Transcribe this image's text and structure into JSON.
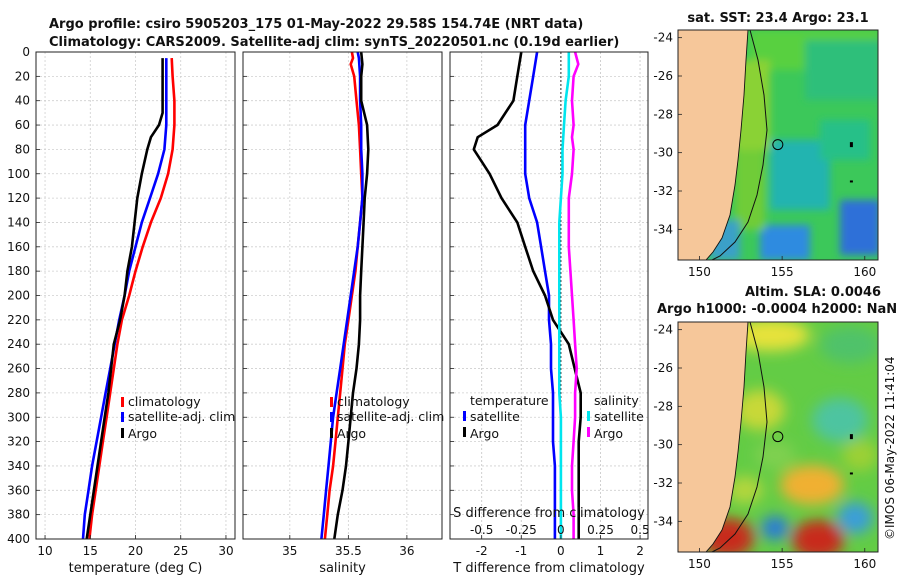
{
  "figure": {
    "title_line1": "Argo profile: csiro 5905203_175 01-May-2022 29.58S 154.74E (NRT data)",
    "title_line2": "Climatology: CARS2009. Satellite-adj clim: synTS_20220501.nc (0.19d earlier)",
    "copyright": "©IMOS 06-May-2022 11:41:04"
  },
  "colors": {
    "argo": "#000000",
    "climatology": "#ff0000",
    "satellite_adj": "#0000ff",
    "salinity_satellite": "#00e5ee",
    "salinity_argo": "#ff00ff",
    "land": "#f6c79a",
    "frame": "#222222"
  },
  "depth_axis": {
    "min": 0,
    "max": 400,
    "ticks": [
      "0",
      "20",
      "40",
      "60",
      "80",
      "100",
      "120",
      "140",
      "160",
      "180",
      "200",
      "220",
      "240",
      "260",
      "280",
      "300",
      "320",
      "340",
      "360",
      "380",
      "400"
    ]
  },
  "chart_data": [
    {
      "id": "temperature",
      "type": "line",
      "xlabel": "temperature (deg C)",
      "xlim": [
        9,
        31
      ],
      "ylim": [
        0,
        400
      ],
      "y_inverted": true,
      "grid": true,
      "xticks": [
        10,
        15,
        20,
        25,
        30
      ],
      "xtick_labels": [
        "10",
        "15",
        "20",
        "25",
        "30"
      ],
      "legend": {
        "placement": "lower-middle",
        "entries": [
          "climatology",
          "satellite-adj. clim",
          "Argo"
        ]
      },
      "series": [
        {
          "name": "climatology",
          "color": "#ff0000",
          "depth": [
            5,
            20,
            40,
            60,
            80,
            100,
            120,
            140,
            160,
            180,
            200,
            220,
            240,
            260,
            280,
            300,
            320,
            340,
            360,
            380,
            400
          ],
          "values": [
            24,
            24.1,
            24.3,
            24.3,
            24.1,
            23.6,
            22.8,
            21.7,
            20.8,
            20.0,
            19.3,
            18.5,
            18.0,
            17.6,
            17.2,
            16.8,
            16.4,
            16.0,
            15.6,
            15.2,
            14.9
          ]
        },
        {
          "name": "satellite-adj. clim",
          "color": "#0000ff",
          "depth": [
            5,
            20,
            40,
            60,
            80,
            100,
            120,
            140,
            160,
            180,
            200,
            220,
            240,
            260,
            280,
            300,
            320,
            340,
            360,
            380,
            400
          ],
          "values": [
            23.4,
            23.4,
            23.4,
            23.4,
            23.2,
            22.5,
            21.6,
            20.7,
            20.0,
            19.3,
            18.8,
            18.2,
            17.7,
            17.2,
            16.7,
            16.2,
            15.7,
            15.2,
            14.8,
            14.4,
            14.2
          ]
        },
        {
          "name": "Argo",
          "color": "#000000",
          "depth": [
            5,
            20,
            40,
            50,
            60,
            70,
            80,
            100,
            120,
            140,
            160,
            180,
            200,
            220,
            240,
            260,
            280,
            300,
            320,
            340,
            360,
            380,
            400
          ],
          "values": [
            23,
            23,
            23,
            23,
            22.6,
            21.7,
            21.3,
            20.7,
            20.2,
            19.9,
            19.6,
            19.1,
            18.8,
            18.3,
            17.6,
            17.3,
            17.0,
            16.6,
            16.2,
            15.8,
            15.4,
            15.0,
            14.6
          ]
        }
      ]
    },
    {
      "id": "salinity",
      "type": "line",
      "xlabel": "salinity",
      "xlim": [
        34.6,
        36.3
      ],
      "ylim": [
        0,
        400
      ],
      "y_inverted": true,
      "grid": true,
      "xticks": [
        35,
        35.5,
        36
      ],
      "xtick_labels": [
        "35",
        "35.5",
        "36"
      ],
      "legend": {
        "placement": "lower-middle",
        "entries": [
          "climatology",
          "satellite-adj. clim",
          "Argo"
        ]
      },
      "series": [
        {
          "name": "climatology",
          "color": "#ff0000",
          "depth": [
            0,
            5,
            10,
            20,
            40,
            60,
            80,
            100,
            120,
            140,
            160,
            180,
            200,
            220,
            240,
            260,
            280,
            300,
            320,
            340,
            360,
            380,
            400
          ],
          "values": [
            35.53,
            35.54,
            35.52,
            35.55,
            35.57,
            35.59,
            35.6,
            35.61,
            35.62,
            35.6,
            35.58,
            35.56,
            35.53,
            35.5,
            35.47,
            35.45,
            35.43,
            35.41,
            35.39,
            35.37,
            35.34,
            35.32,
            35.3
          ]
        },
        {
          "name": "satellite-adj. clim",
          "color": "#0000ff",
          "depth": [
            0,
            5,
            20,
            40,
            60,
            80,
            100,
            120,
            140,
            160,
            180,
            200,
            220,
            240,
            260,
            280,
            300,
            320,
            340,
            360,
            380,
            400
          ],
          "values": [
            35.58,
            35.59,
            35.6,
            35.6,
            35.61,
            35.61,
            35.62,
            35.62,
            35.6,
            35.58,
            35.55,
            35.52,
            35.49,
            35.46,
            35.43,
            35.4,
            35.37,
            35.35,
            35.33,
            35.31,
            35.29,
            35.27
          ]
        },
        {
          "name": "Argo",
          "color": "#000000",
          "depth": [
            0,
            10,
            20,
            40,
            60,
            80,
            100,
            120,
            140,
            160,
            180,
            200,
            220,
            240,
            260,
            280,
            300,
            320,
            340,
            360,
            380,
            400
          ],
          "values": [
            35.61,
            35.62,
            35.61,
            35.61,
            35.66,
            35.67,
            35.66,
            35.64,
            35.63,
            35.62,
            35.61,
            35.6,
            35.6,
            35.59,
            35.57,
            35.54,
            35.52,
            35.5,
            35.48,
            35.45,
            35.41,
            35.38
          ]
        }
      ]
    },
    {
      "id": "difference",
      "type": "line",
      "xlabel": "T difference from climatology",
      "xlabel_top": "S difference from climatology",
      "xlim": [
        -2.8,
        2.2
      ],
      "ylim": [
        0,
        400
      ],
      "y_inverted": true,
      "grid": true,
      "xticks": [
        -2,
        -1,
        0,
        1,
        2
      ],
      "xtick_labels": [
        "-2",
        "-1",
        "0",
        "1",
        "2"
      ],
      "s_ticks": [
        -0.5,
        -0.25,
        0,
        0.25,
        0.5
      ],
      "s_tick_labels": [
        "-0.5",
        "-0.25",
        "0",
        "0.25",
        "0.5"
      ],
      "legend": {
        "placement": "lower-middle",
        "temperature_header": "temperature",
        "salinity_header": "salinity",
        "entries": [
          "satellite",
          "Argo",
          "satellite",
          "Argo"
        ]
      },
      "series": [
        {
          "name": "T satellite",
          "color": "#0000ff",
          "depth": [
            0,
            20,
            40,
            60,
            80,
            100,
            120,
            140,
            160,
            180,
            200,
            220,
            240,
            260,
            280,
            300,
            320,
            340,
            360,
            380,
            400
          ],
          "values": [
            -0.6,
            -0.7,
            -0.8,
            -0.9,
            -0.9,
            -0.9,
            -0.8,
            -0.6,
            -0.5,
            -0.4,
            -0.3,
            -0.3,
            -0.25,
            -0.25,
            -0.2,
            -0.2,
            -0.2,
            -0.15,
            -0.15,
            -0.15,
            -0.15
          ]
        },
        {
          "name": "T Argo",
          "color": "#000000",
          "depth": [
            0,
            20,
            40,
            60,
            70,
            80,
            90,
            100,
            120,
            140,
            160,
            180,
            200,
            220,
            240,
            260,
            280,
            300,
            320,
            340,
            360,
            380,
            400
          ],
          "values": [
            -1,
            -1.1,
            -1.2,
            -1.6,
            -2.1,
            -2.2,
            -2.0,
            -1.8,
            -1.5,
            -1.1,
            -0.9,
            -0.7,
            -0.4,
            -0.2,
            0.2,
            0.35,
            0.5,
            0.5,
            0.45,
            0.45,
            0.45,
            0.45,
            0.45
          ]
        },
        {
          "name": "S satellite",
          "color": "#00e5ee",
          "depth": [
            0,
            20,
            40,
            60,
            80,
            100,
            120,
            140,
            160,
            180,
            200,
            220,
            240,
            260,
            280,
            300,
            320,
            340,
            360,
            380,
            400
          ],
          "values": [
            0.05,
            0.05,
            0.03,
            0.02,
            0.01,
            0.01,
            0.0,
            -0.01,
            -0.01,
            -0.01,
            -0.01,
            -0.01,
            -0.01,
            -0.01,
            -0.01,
            0.0,
            0.0,
            0.0,
            0.0,
            0.0,
            0.0
          ]
        },
        {
          "name": "S Argo",
          "color": "#ff00ff",
          "depth": [
            0,
            10,
            20,
            40,
            60,
            70,
            80,
            100,
            120,
            140,
            160,
            180,
            200,
            220,
            240,
            260,
            280,
            300,
            320,
            340,
            360,
            380,
            400
          ],
          "values": [
            0.09,
            0.11,
            0.08,
            0.07,
            0.08,
            0.07,
            0.08,
            0.07,
            0.05,
            0.05,
            0.05,
            0.06,
            0.07,
            0.08,
            0.09,
            0.1,
            0.09,
            0.09,
            0.08,
            0.07,
            0.07,
            0.08,
            0.08
          ]
        }
      ]
    }
  ],
  "maps": [
    {
      "id": "sst_map",
      "title": "sat. SST: 23.4 Argo: 23.1",
      "lon_ticks": [
        150,
        155,
        160
      ],
      "lon_labels": [
        "150",
        "155",
        "160"
      ],
      "lat_ticks": [
        -24,
        -26,
        -28,
        -30,
        -32,
        -34
      ],
      "lat_labels": [
        "-24",
        "-26",
        "-28",
        "-30",
        "-32",
        "-34"
      ],
      "lon_range": [
        148.7,
        160.8
      ],
      "lat_range": [
        -35.6,
        -23.6
      ],
      "float_lon": 154.74,
      "float_lat": -29.58
    },
    {
      "id": "sla_map",
      "title_line1": "Altim. SLA: 0.0046",
      "title_line2": "Argo h1000: -0.0004 h2000: NaN",
      "lon_ticks": [
        150,
        155,
        160
      ],
      "lon_labels": [
        "150",
        "155",
        "160"
      ],
      "lat_ticks": [
        -24,
        -26,
        -28,
        -30,
        -32,
        -34
      ],
      "lat_labels": [
        "-24",
        "-26",
        "-28",
        "-30",
        "-32",
        "-34"
      ],
      "lon_range": [
        148.7,
        160.8
      ],
      "lat_range": [
        -35.6,
        -23.6
      ],
      "float_lon": 154.74,
      "float_lat": -29.58
    }
  ]
}
